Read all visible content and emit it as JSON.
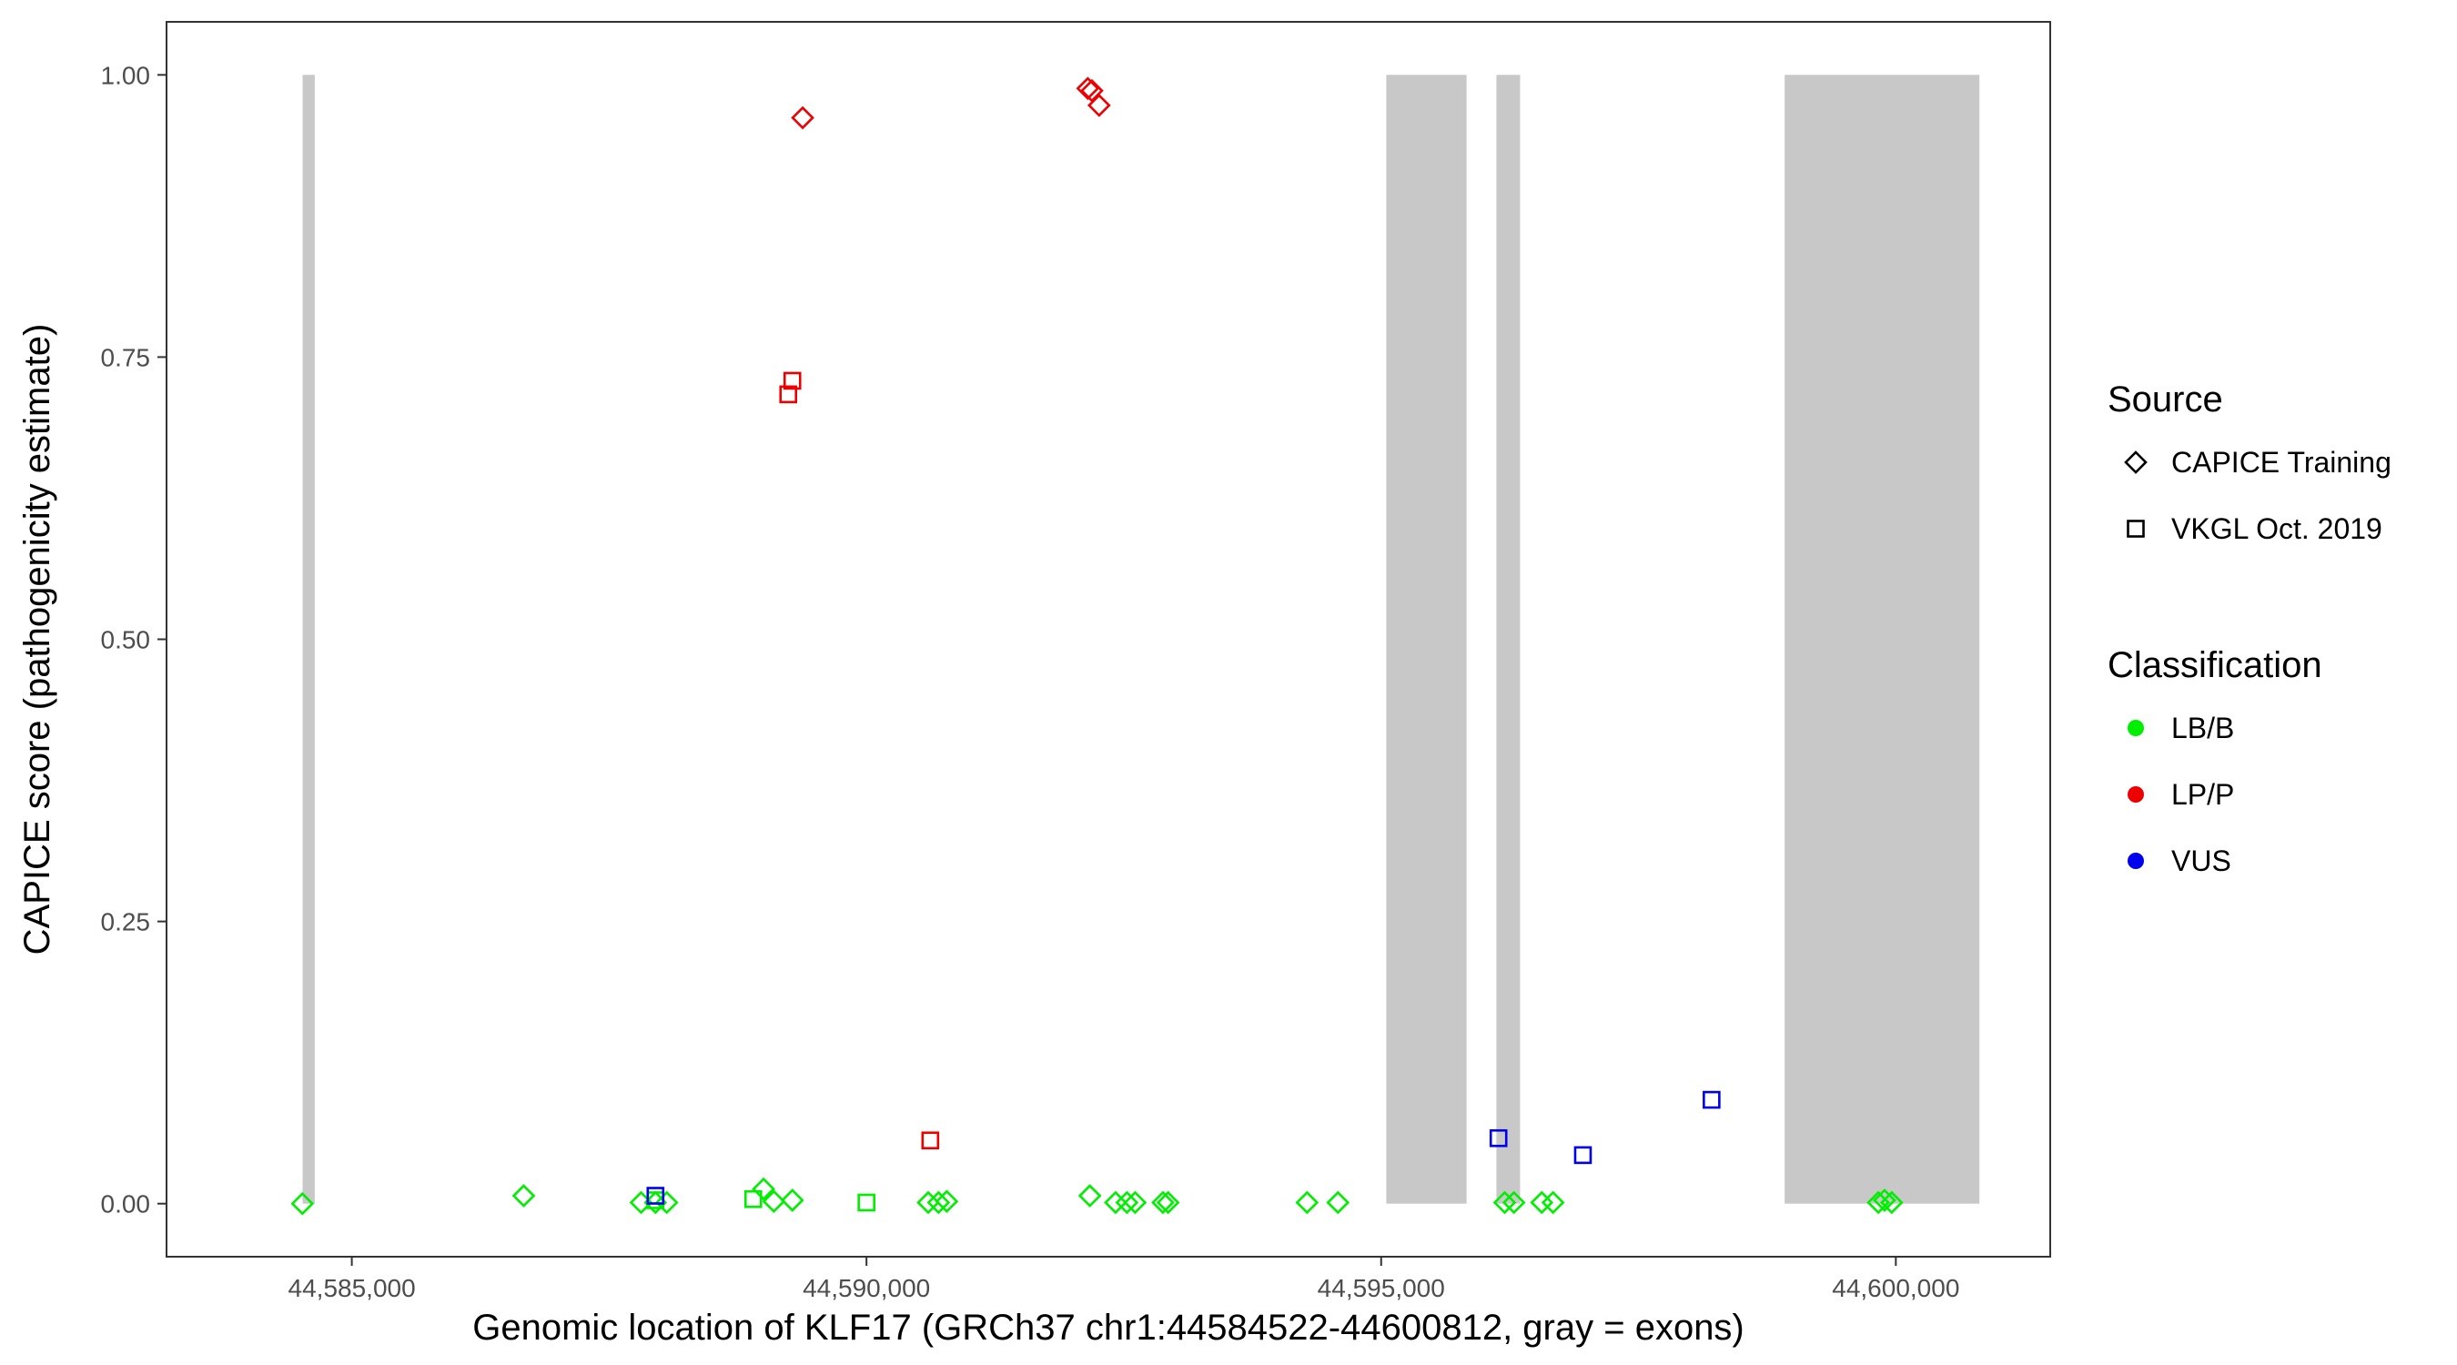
{
  "chart_data": {
    "type": "scatter",
    "title": "",
    "xlabel": "Genomic location of KLF17 (GRCh37 chr1:44584522-44600812, gray = exons)",
    "ylabel": "CAPICE score (pathogenicity estimate)",
    "xlim": [
      44583200,
      44601500
    ],
    "ylim": [
      -0.047,
      1.047
    ],
    "x_ticks": [
      44585000,
      44590000,
      44595000,
      44600000
    ],
    "x_tick_labels": [
      "44,585,000",
      "44,590,000",
      "44,595,000",
      "44,600,000"
    ],
    "y_ticks": [
      0,
      0.25,
      0.5,
      0.75,
      1.0
    ],
    "y_tick_labels": [
      "0.00",
      "0.25",
      "0.50",
      "0.75",
      "1.00"
    ],
    "grid": false,
    "legend_position": "right",
    "exons": [
      {
        "start": 44584522,
        "end": 44584640
      },
      {
        "start": 44595050,
        "end": 44595830
      },
      {
        "start": 44596120,
        "end": 44596350
      },
      {
        "start": 44598920,
        "end": 44600812
      }
    ],
    "exon_color": "#c8c8c8",
    "classification_colors": {
      "LB/B": "#00ee00",
      "LP/P": "#ee0000",
      "VUS": "#0000ee"
    },
    "legend": {
      "source_title": "Source",
      "source_items": [
        {
          "label": "CAPICE Training",
          "shape": "diamond"
        },
        {
          "label": "VKGL Oct. 2019",
          "shape": "square"
        }
      ],
      "classification_title": "Classification",
      "classification_items": [
        {
          "label": "LB/B",
          "color": "#00ee00"
        },
        {
          "label": "LP/P",
          "color": "#ee0000"
        },
        {
          "label": "VUS",
          "color": "#0000ee"
        }
      ]
    },
    "series": [
      {
        "source": "CAPICE Training",
        "classification": "LB/B",
        "points": [
          [
            44584520,
            0.0
          ],
          [
            44586670,
            0.007
          ],
          [
            44587810,
            0.001
          ],
          [
            44587950,
            0.001
          ],
          [
            44588060,
            0.001
          ],
          [
            44589000,
            0.013
          ],
          [
            44589100,
            0.002
          ],
          [
            44589280,
            0.003
          ],
          [
            44590600,
            0.001
          ],
          [
            44590700,
            0.001
          ],
          [
            44590780,
            0.002
          ],
          [
            44592170,
            0.007
          ],
          [
            44592420,
            0.001
          ],
          [
            44592530,
            0.001
          ],
          [
            44592610,
            0.001
          ],
          [
            44592880,
            0.001
          ],
          [
            44592930,
            0.001
          ],
          [
            44594280,
            0.001
          ],
          [
            44594580,
            0.001
          ],
          [
            44596200,
            0.001
          ],
          [
            44596290,
            0.001
          ],
          [
            44596560,
            0.001
          ],
          [
            44596670,
            0.001
          ],
          [
            44599830,
            0.001
          ],
          [
            44599890,
            0.003
          ],
          [
            44599960,
            0.001
          ]
        ]
      },
      {
        "source": "CAPICE Training",
        "classification": "LP/P",
        "points": [
          [
            44589380,
            0.962
          ],
          [
            44592150,
            0.988
          ],
          [
            44592190,
            0.986
          ],
          [
            44592260,
            0.973
          ]
        ]
      },
      {
        "source": "VKGL Oct. 2019",
        "classification": "LB/B",
        "points": [
          [
            44587950,
            0.003
          ],
          [
            44588900,
            0.004
          ],
          [
            44590000,
            0.001
          ]
        ]
      },
      {
        "source": "VKGL Oct. 2019",
        "classification": "LP/P",
        "points": [
          [
            44589240,
            0.717
          ],
          [
            44589280,
            0.729
          ],
          [
            44590620,
            0.056
          ]
        ]
      },
      {
        "source": "VKGL Oct. 2019",
        "classification": "VUS",
        "points": [
          [
            44587950,
            0.007
          ],
          [
            44596140,
            0.058
          ],
          [
            44596960,
            0.043
          ],
          [
            44598210,
            0.092
          ]
        ]
      }
    ]
  }
}
